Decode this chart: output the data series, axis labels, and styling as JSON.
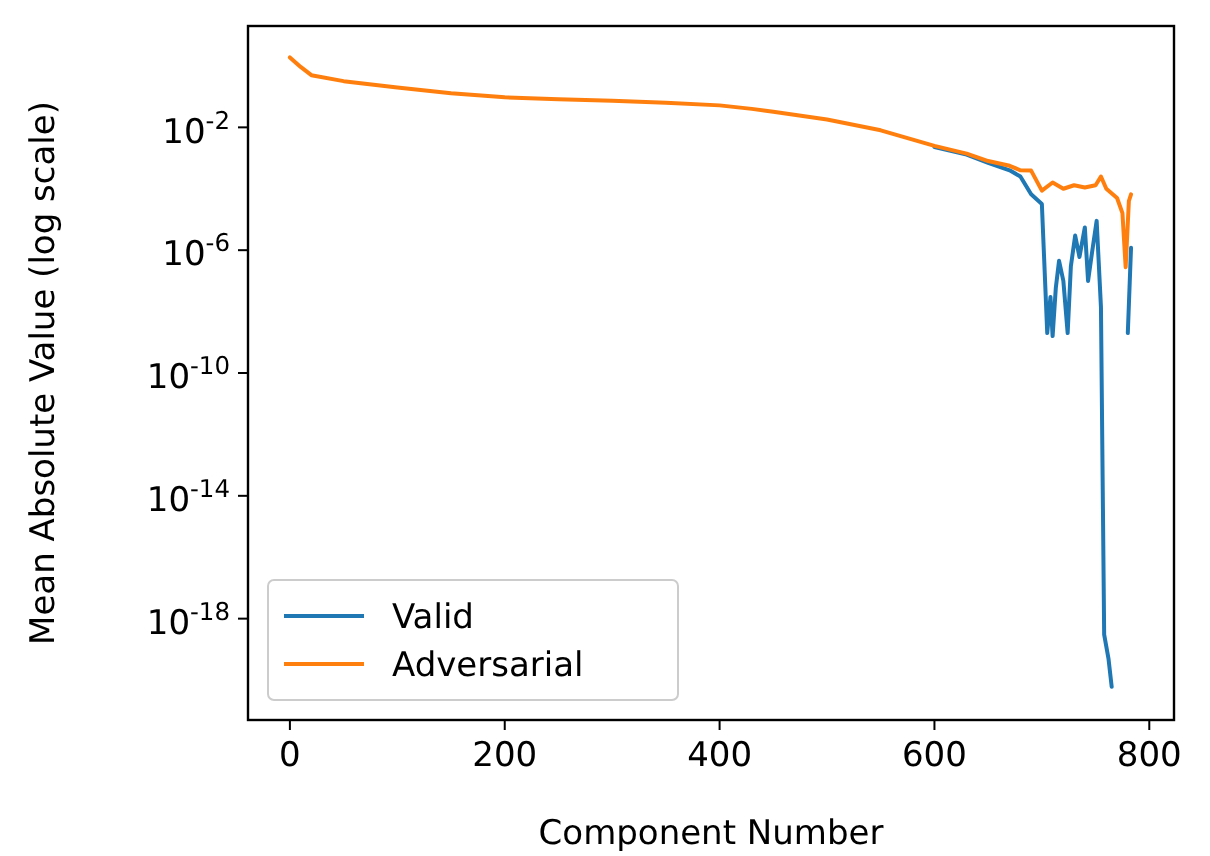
{
  "chart_data": {
    "type": "line",
    "xlabel": "Component Number",
    "ylabel": "Mean Absolute Value (log scale)",
    "log": "y",
    "legend": "bottom left",
    "grid": false,
    "xlim": [
      -39,
      823
    ],
    "xticks": [
      0,
      200,
      400,
      600,
      800
    ],
    "ylim": [
      5e-22,
      20
    ],
    "yticks": [
      {
        "value": 0.01,
        "label": "10$^{-2}$"
      },
      {
        "value": 1e-06,
        "label": "10$^{-6}$"
      },
      {
        "value": 1e-10,
        "label": "10$^{-10}$"
      },
      {
        "value": 1e-14,
        "label": "10$^{-14}$"
      },
      {
        "value": 1e-18,
        "label": "10$^{-18}$"
      }
    ],
    "series": [
      {
        "name": "Valid",
        "color": "#1f77b4",
        "x": [
          600,
          630,
          650,
          670,
          680,
          690,
          700,
          705,
          708,
          710,
          713,
          716,
          720,
          724,
          727,
          731,
          735,
          740,
          743,
          747,
          751,
          755,
          758,
          762,
          765,
          770,
          780,
          783
        ],
        "values": [
          0.0023,
          0.0013,
          0.0007,
          0.0004,
          0.00025,
          6.6e-05,
          3.2e-05,
          2e-09,
          3e-08,
          1.6e-09,
          6e-08,
          4.5e-07,
          1e-07,
          2e-09,
          3e-07,
          3e-06,
          6e-07,
          5.5e-06,
          1e-07,
          1e-06,
          9e-06,
          1.4e-08,
          3e-19,
          5e-20,
          6e-21,
          null,
          2e-09,
          1.2e-06
        ]
      },
      {
        "name": "Adversarial",
        "color": "#ff7f0e",
        "x": [
          0,
          10,
          20,
          50,
          100,
          150,
          200,
          250,
          300,
          350,
          400,
          430,
          450,
          500,
          550,
          600,
          630,
          650,
          670,
          680,
          690,
          700,
          710,
          720,
          730,
          740,
          750,
          755,
          760,
          770,
          775,
          778,
          781,
          783
        ],
        "values": [
          1.9,
          0.93,
          0.5,
          0.32,
          0.2,
          0.13,
          0.095,
          0.083,
          0.074,
          0.063,
          0.052,
          0.04,
          0.032,
          0.018,
          0.008,
          0.0025,
          0.0014,
          0.0008,
          0.00056,
          0.0004,
          0.00039,
          8.7e-05,
          0.00016,
          0.0001,
          0.00013,
          0.00011,
          0.00013,
          0.00025,
          0.0001,
          5e-05,
          1.6e-05,
          2.8e-07,
          4e-05,
          6.6e-05
        ]
      }
    ]
  }
}
